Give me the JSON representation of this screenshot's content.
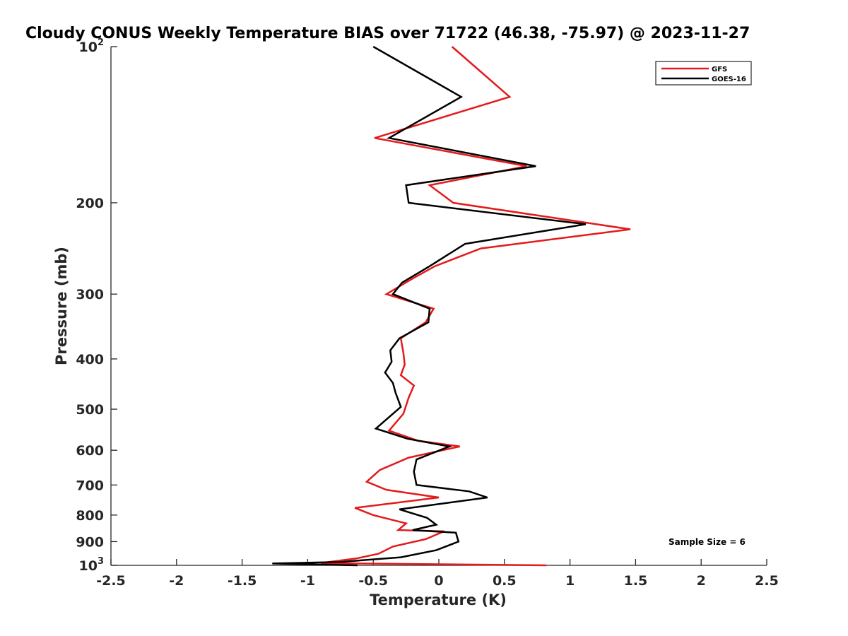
{
  "chart_data": {
    "type": "line",
    "title": "Cloudy CONUS Weekly Temperature BIAS over 71722 (46.38, -75.97) @ 2023-11-27",
    "xlabel": "Temperature (K)",
    "ylabel": "Pressure (mb)",
    "xlim": [
      -2.5,
      2.5
    ],
    "ylim": [
      100,
      1000
    ],
    "y_scale": "log",
    "y_reversed": true,
    "grid": false,
    "legend_position": "top-right",
    "x_ticks": [
      "-2.5",
      "-2",
      "-1.5",
      "-1",
      "-0.5",
      "0",
      "0.5",
      "1",
      "1.5",
      "2",
      "2.5"
    ],
    "x_tick_values": [
      -2.5,
      -2,
      -1.5,
      -1,
      -0.5,
      0,
      0.5,
      1,
      1.5,
      2,
      2.5
    ],
    "y_ticks": [
      {
        "value": 100,
        "label": "10",
        "sup": "2"
      },
      {
        "value": 200,
        "label": "200"
      },
      {
        "value": 300,
        "label": "300"
      },
      {
        "value": 400,
        "label": "400"
      },
      {
        "value": 500,
        "label": "500"
      },
      {
        "value": 600,
        "label": "600"
      },
      {
        "value": 700,
        "label": "700"
      },
      {
        "value": 800,
        "label": "800"
      },
      {
        "value": 900,
        "label": "900"
      },
      {
        "value": 1000,
        "label": "10",
        "sup": "3"
      }
    ],
    "series": [
      {
        "name": "GFS",
        "color": "#e41a1c",
        "points": [
          [
            0.1,
            100
          ],
          [
            0.54,
            125
          ],
          [
            -0.49,
            150
          ],
          [
            0.67,
            170
          ],
          [
            -0.07,
            185
          ],
          [
            0.11,
            200
          ],
          [
            1.46,
            225
          ],
          [
            0.32,
            245
          ],
          [
            -0.03,
            265
          ],
          [
            -0.2,
            280
          ],
          [
            -0.4,
            300
          ],
          [
            -0.04,
            320
          ],
          [
            -0.1,
            340
          ],
          [
            -0.29,
            365
          ],
          [
            -0.27,
            390
          ],
          [
            -0.26,
            410
          ],
          [
            -0.29,
            430
          ],
          [
            -0.19,
            450
          ],
          [
            -0.23,
            475
          ],
          [
            -0.27,
            510
          ],
          [
            -0.38,
            550
          ],
          [
            -0.16,
            575
          ],
          [
            0.16,
            590
          ],
          [
            -0.23,
            620
          ],
          [
            -0.45,
            655
          ],
          [
            -0.55,
            690
          ],
          [
            -0.4,
            715
          ],
          [
            0.0,
            740
          ],
          [
            -0.64,
            775
          ],
          [
            -0.5,
            800
          ],
          [
            -0.25,
            830
          ],
          [
            -0.31,
            855
          ],
          [
            0.04,
            860
          ],
          [
            -0.1,
            890
          ],
          [
            -0.35,
            920
          ],
          [
            -0.46,
            950
          ],
          [
            -0.63,
            970
          ],
          [
            -0.9,
            990
          ],
          [
            0.82,
            1000
          ]
        ]
      },
      {
        "name": "GOES-16",
        "color": "#000000",
        "points": [
          [
            -0.5,
            100
          ],
          [
            0.17,
            125
          ],
          [
            -0.38,
            150
          ],
          [
            0.74,
            170
          ],
          [
            -0.25,
            185
          ],
          [
            -0.23,
            200
          ],
          [
            1.12,
            220
          ],
          [
            0.2,
            240
          ],
          [
            -0.07,
            265
          ],
          [
            -0.28,
            285
          ],
          [
            -0.35,
            300
          ],
          [
            -0.07,
            320
          ],
          [
            -0.08,
            340
          ],
          [
            -0.3,
            365
          ],
          [
            -0.37,
            385
          ],
          [
            -0.36,
            405
          ],
          [
            -0.41,
            425
          ],
          [
            -0.35,
            445
          ],
          [
            -0.33,
            465
          ],
          [
            -0.29,
            495
          ],
          [
            -0.48,
            545
          ],
          [
            -0.24,
            570
          ],
          [
            0.08,
            590
          ],
          [
            -0.17,
            625
          ],
          [
            -0.19,
            660
          ],
          [
            -0.17,
            700
          ],
          [
            0.23,
            720
          ],
          [
            0.37,
            740
          ],
          [
            -0.3,
            780
          ],
          [
            -0.09,
            810
          ],
          [
            -0.02,
            835
          ],
          [
            -0.2,
            855
          ],
          [
            0.13,
            865
          ],
          [
            0.15,
            900
          ],
          [
            -0.02,
            935
          ],
          [
            -0.29,
            965
          ],
          [
            -0.75,
            985
          ],
          [
            -1.27,
            992
          ],
          [
            -0.62,
            1000
          ]
        ]
      }
    ],
    "annotations": [
      "Sample Size = 6"
    ]
  }
}
